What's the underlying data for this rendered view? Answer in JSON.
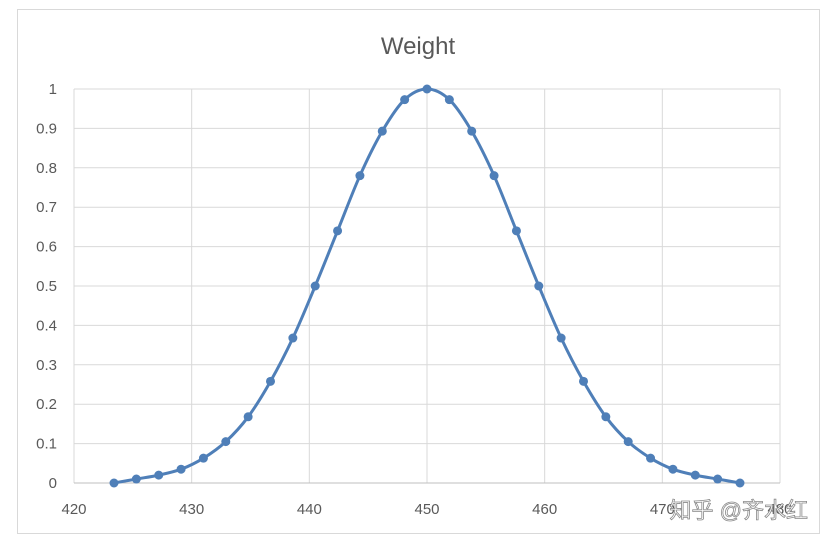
{
  "chart_data": {
    "type": "scatter",
    "title": "Weight",
    "xlabel": "",
    "ylabel": "",
    "xlim": [
      420,
      480
    ],
    "ylim": [
      0,
      1
    ],
    "x_ticks": [
      "420",
      "430",
      "440",
      "450",
      "460",
      "470",
      "480"
    ],
    "y_ticks": [
      "0",
      "0.1",
      "0.2",
      "0.3",
      "0.4",
      "0.5",
      "0.6",
      "0.7",
      "0.8",
      "0.9",
      "1"
    ],
    "grid": true,
    "legend": "none",
    "smooth_line": true,
    "series": [
      {
        "color": "#4f7fb8",
        "x": [
          423.4,
          425.3,
          427.2,
          429.1,
          431.0,
          432.9,
          434.8,
          436.7,
          438.6,
          440.5,
          442.4,
          444.3,
          446.2,
          448.1,
          450.0,
          451.9,
          453.8,
          455.7,
          457.6,
          459.5,
          461.4,
          463.3,
          465.2,
          467.1,
          469.0,
          470.9,
          472.8,
          474.7,
          476.6
        ],
        "y": [
          0.0,
          0.01,
          0.02,
          0.035,
          0.063,
          0.105,
          0.168,
          0.258,
          0.368,
          0.5,
          0.64,
          0.78,
          0.893,
          0.973,
          1.0,
          0.973,
          0.893,
          0.78,
          0.64,
          0.5,
          0.368,
          0.258,
          0.168,
          0.105,
          0.063,
          0.035,
          0.02,
          0.01,
          0.0
        ]
      }
    ]
  },
  "watermark": {
    "text": "知乎 @齐水红"
  }
}
